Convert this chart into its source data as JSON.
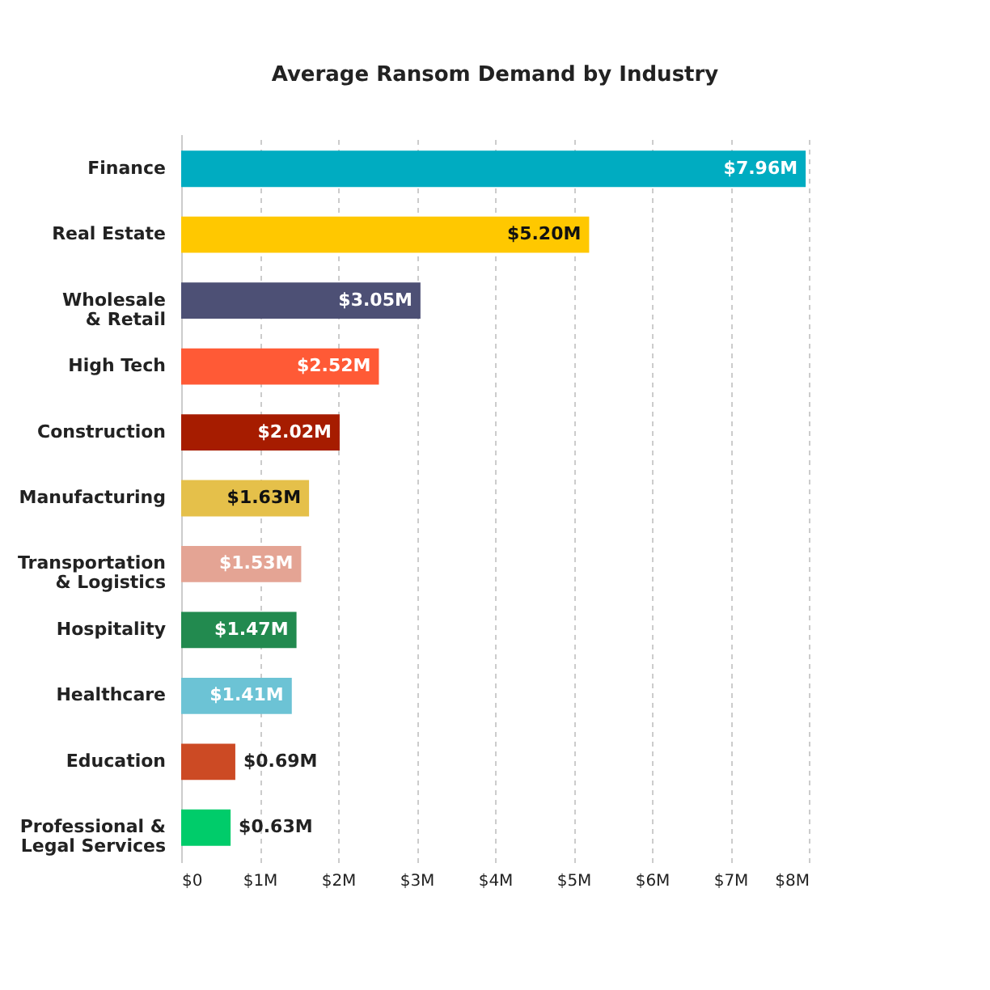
{
  "chart_data": {
    "type": "bar",
    "title": "Average Ransom Demand by Industry",
    "orientation": "horizontal",
    "categories": [
      "Finance",
      "Real Estate",
      "Wholesale\n& Retail",
      "High Tech",
      "Construction",
      "Manufacturing",
      "Transportation\n& Logistics",
      "Hospitality",
      "Healthcare",
      "Education",
      "Professional &\nLegal Services"
    ],
    "values": [
      7.96,
      5.2,
      3.05,
      2.52,
      2.02,
      1.63,
      1.53,
      1.47,
      1.41,
      0.69,
      0.63
    ],
    "value_labels": [
      "$7.96M",
      "$5.20M",
      "$3.05M",
      "$2.52M",
      "$2.02M",
      "$1.63M",
      "$1.53M",
      "$1.47M",
      "$1.41M",
      "$0.69M",
      "$0.63M"
    ],
    "colors": [
      "#00acc1",
      "#ffc800",
      "#4d5075",
      "#ff5a36",
      "#a61c00",
      "#e5c04a",
      "#e4a494",
      "#228a4f",
      "#6cc3d5",
      "#cc4a24",
      "#00cc6a"
    ],
    "xlim": [
      0,
      8
    ],
    "xticks": [
      {
        "value": 0,
        "label": "$0"
      },
      {
        "value": 1,
        "label": "$1M"
      },
      {
        "value": 2,
        "label": "$2M"
      },
      {
        "value": 3,
        "label": "$3M"
      },
      {
        "value": 4,
        "label": "$4M"
      },
      {
        "value": 5,
        "label": "$5M"
      },
      {
        "value": 6,
        "label": "$6M"
      },
      {
        "value": 7,
        "label": "$7M"
      },
      {
        "value": 8,
        "label": "$8M"
      }
    ],
    "grid": "x"
  }
}
